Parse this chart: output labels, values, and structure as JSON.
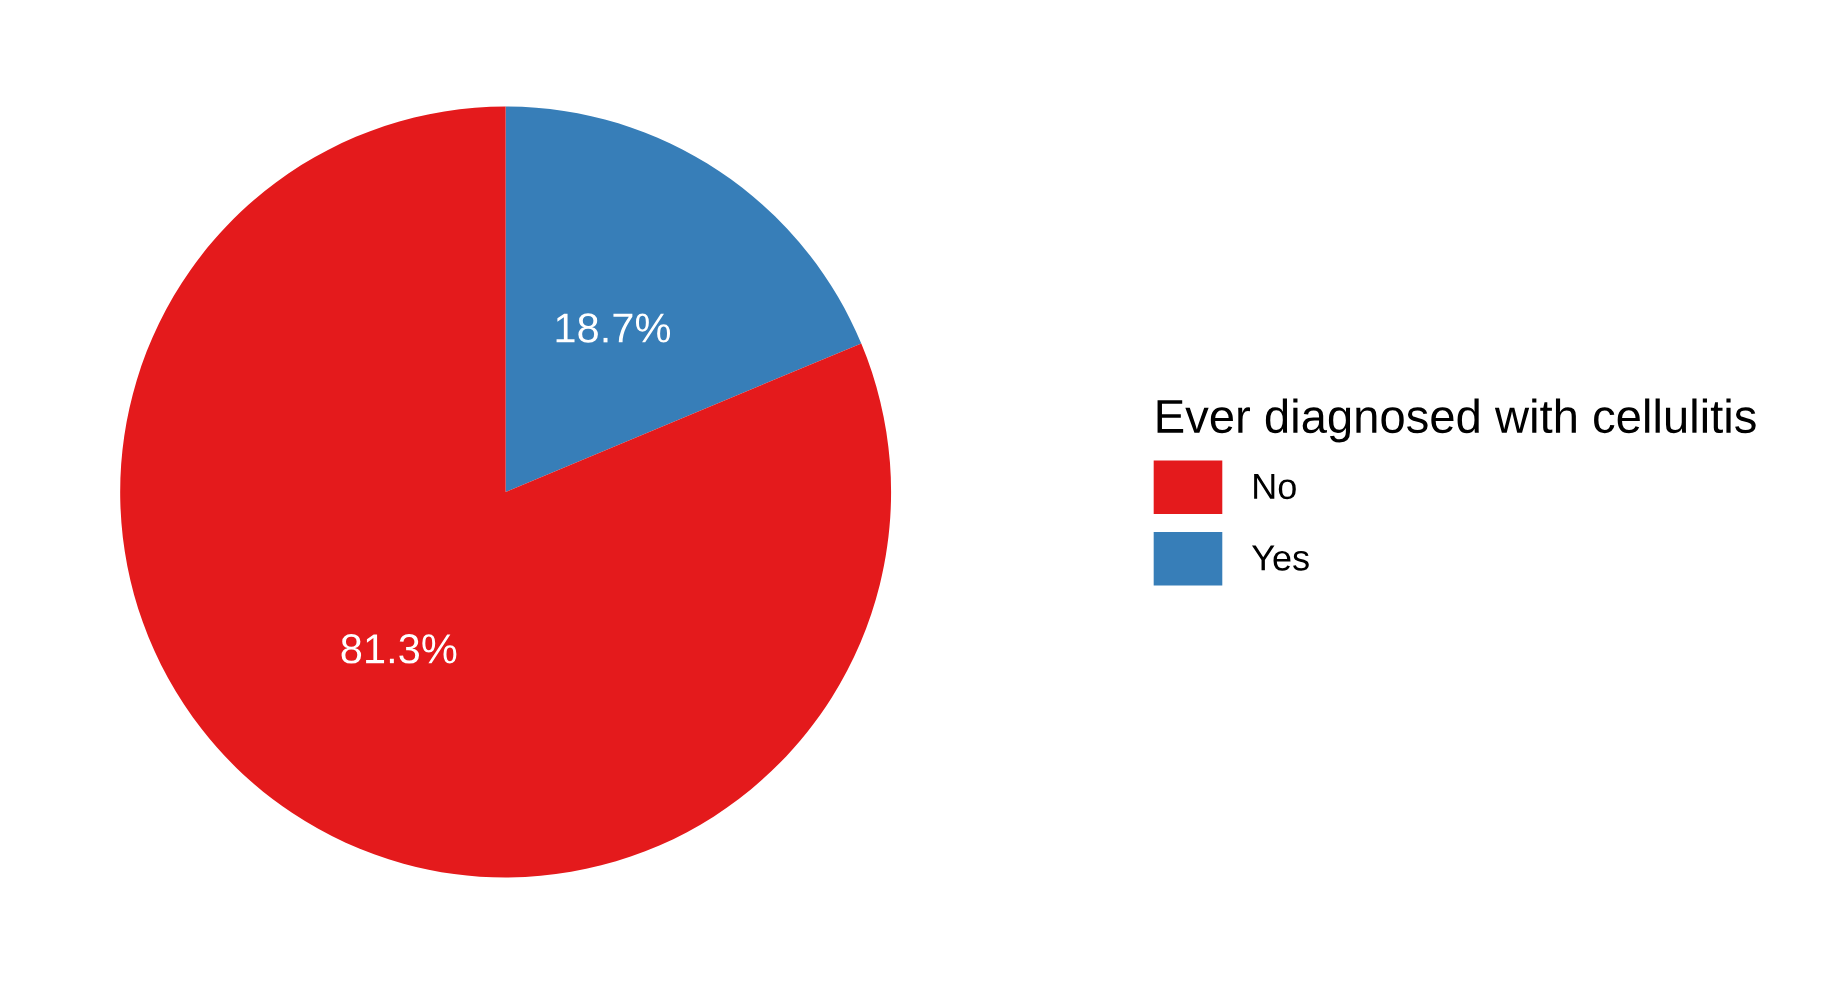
{
  "chart_data": {
    "type": "pie",
    "legend_title": "Ever diagnosed with cellulitis",
    "categories": [
      "No",
      "Yes"
    ],
    "values": [
      81.3,
      18.7
    ],
    "value_labels": [
      "81.3%",
      "18.7%"
    ],
    "colors": [
      "#e41a1c",
      "#377eb8"
    ],
    "legend": "right"
  }
}
